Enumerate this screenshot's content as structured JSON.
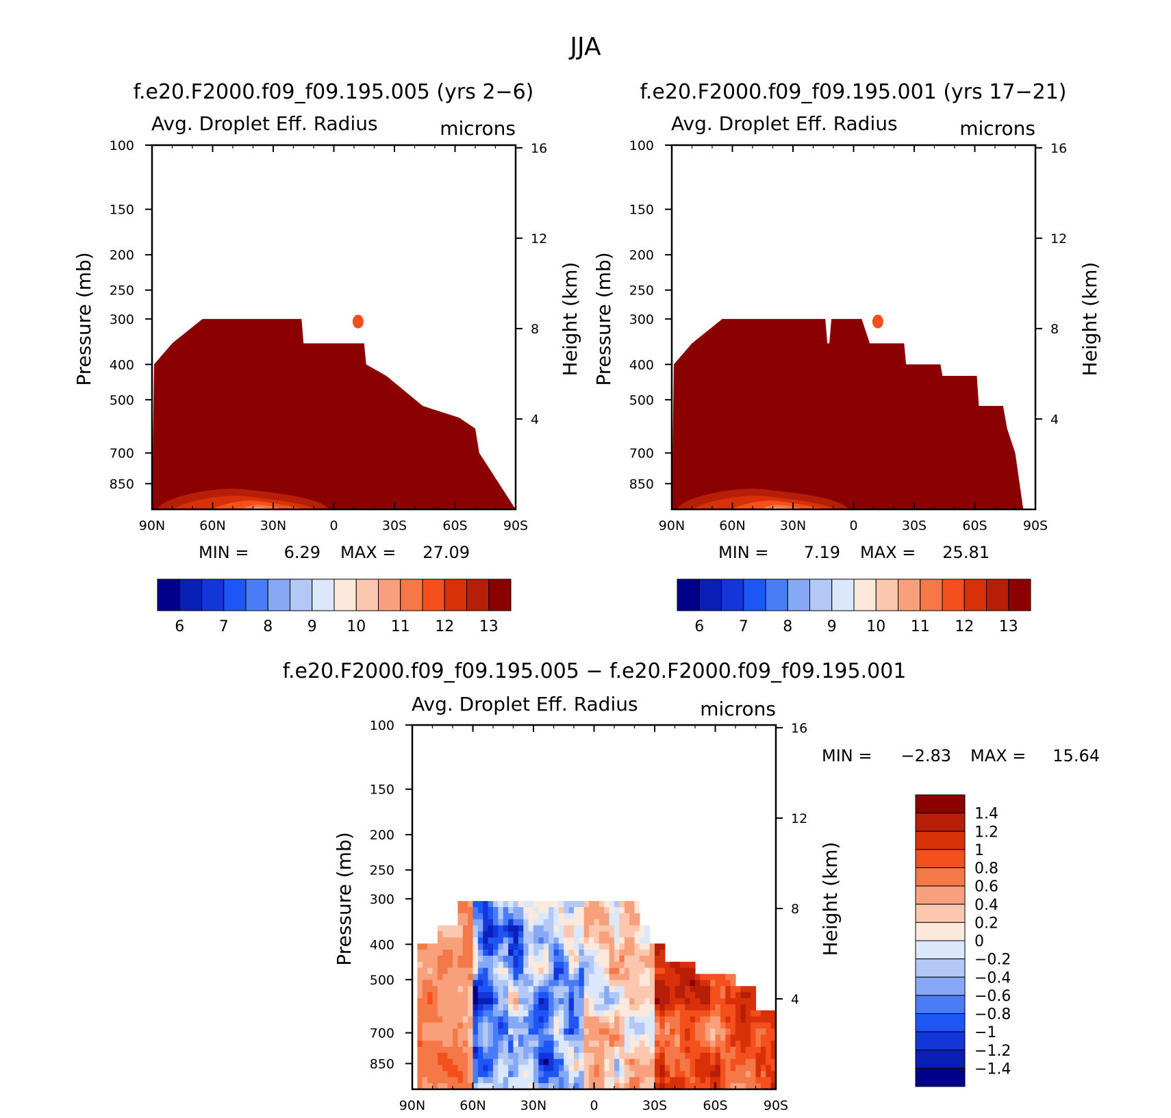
{
  "figure": {
    "supertitle": "JJA"
  },
  "colors": {
    "ctl_scale": [
      "#00008b",
      "#0a1fb5",
      "#1436d8",
      "#1e56f5",
      "#4a7df5",
      "#86a8f5",
      "#b4c8f6",
      "#dbe7fb",
      "#fde9dc",
      "#fbc7ae",
      "#f8a07b",
      "#f57848",
      "#f3501d",
      "#d8310a",
      "#b71e08",
      "#8b0000"
    ],
    "diff_scale": [
      "#00008b",
      "#0a1fb5",
      "#1436d8",
      "#1e56f5",
      "#4a7df5",
      "#86a8f5",
      "#b4c8f6",
      "#dbe7fb",
      "#fde9dc",
      "#fbc7ae",
      "#f8a07b",
      "#f57848",
      "#f3501d",
      "#d8310a",
      "#b71e08",
      "#8b0000"
    ]
  },
  "chart_data": [
    {
      "type": "heatmap",
      "case": "f.e20.F2000.f09_f09.195.005 (yrs 2−6)",
      "variable": "Avg. Droplet Eff. Radius",
      "units": "microns",
      "xlabel": "",
      "ylabel": "Pressure (mb)",
      "y2label": "Height (km)",
      "x_ticklabels": [
        "90N",
        "60N",
        "30N",
        "0",
        "30S",
        "60S",
        "90S"
      ],
      "x_range": [
        90,
        -90
      ],
      "y_ticks": [
        100,
        150,
        200,
        250,
        300,
        400,
        500,
        700,
        850
      ],
      "y_range": [
        100,
        1000
      ],
      "y_scale": "log",
      "y2_ticks": [
        16,
        12,
        8,
        4
      ],
      "min_label": "MIN =",
      "min": "6.29",
      "max_label": "MAX =",
      "max": "27.09",
      "colorbar_ticks": [
        "6",
        "7",
        "8",
        "9",
        "10",
        "11",
        "12",
        "13"
      ],
      "field_top": [
        {
          "lat": 90,
          "p_top": 1000
        },
        {
          "lat": 89,
          "p_top": 400
        },
        {
          "lat": 80,
          "p_top": 350
        },
        {
          "lat": 65,
          "p_top": 300
        },
        {
          "lat": 20,
          "p_top": 300
        },
        {
          "lat": 16,
          "p_top": 300
        },
        {
          "lat": 15,
          "p_top": 350
        },
        {
          "lat": 0,
          "p_top": 350
        },
        {
          "lat": -15,
          "p_top": 350
        },
        {
          "lat": -16,
          "p_top": 400
        },
        {
          "lat": -26,
          "p_top": 430
        },
        {
          "lat": -44,
          "p_top": 520
        },
        {
          "lat": -62,
          "p_top": 560
        },
        {
          "lat": -70,
          "p_top": 600
        },
        {
          "lat": -72,
          "p_top": 700
        },
        {
          "lat": -90,
          "p_top": 1000
        }
      ]
    },
    {
      "type": "heatmap",
      "case": "f.e20.F2000.f09_f09.195.001 (yrs 17−21)",
      "variable": "Avg. Droplet Eff. Radius",
      "units": "microns",
      "xlabel": "",
      "ylabel": "Pressure (mb)",
      "y2label": "Height (km)",
      "x_ticklabels": [
        "90N",
        "60N",
        "30N",
        "0",
        "30S",
        "60S",
        "90S"
      ],
      "x_range": [
        90,
        -90
      ],
      "y_ticks": [
        100,
        150,
        200,
        250,
        300,
        400,
        500,
        700,
        850
      ],
      "y_range": [
        100,
        1000
      ],
      "y_scale": "log",
      "y2_ticks": [
        16,
        12,
        8,
        4
      ],
      "min_label": "MIN =",
      "min": "7.19",
      "max_label": "MAX =",
      "max": "25.81",
      "colorbar_ticks": [
        "6",
        "7",
        "8",
        "9",
        "10",
        "11",
        "12",
        "13"
      ]
    },
    {
      "type": "heatmap",
      "case": "f.e20.F2000.f09_f09.195.005 − f.e20.F2000.f09_f09.195.001",
      "variable": "Avg. Droplet Eff. Radius",
      "units": "microns",
      "xlabel": "",
      "ylabel": "Pressure (mb)",
      "y2label": "Height (km)",
      "x_ticklabels": [
        "90N",
        "60N",
        "30N",
        "0",
        "30S",
        "60S",
        "90S"
      ],
      "x_range": [
        90,
        -90
      ],
      "y_ticks": [
        100,
        150,
        200,
        250,
        300,
        400,
        500,
        700,
        850
      ],
      "y_range": [
        100,
        1000
      ],
      "y_scale": "log",
      "y2_ticks": [
        16,
        12,
        8,
        4
      ],
      "min_label": "MIN =",
      "min": "−2.83",
      "max_label": "MAX =",
      "max": "15.64",
      "colorbar_ticks": [
        "1.4",
        "1.2",
        "1",
        "0.8",
        "0.6",
        "0.4",
        "0.2",
        "0",
        "−0.2",
        "−0.4",
        "−0.6",
        "−0.8",
        "−1",
        "−1.2",
        "−1.4"
      ]
    }
  ]
}
